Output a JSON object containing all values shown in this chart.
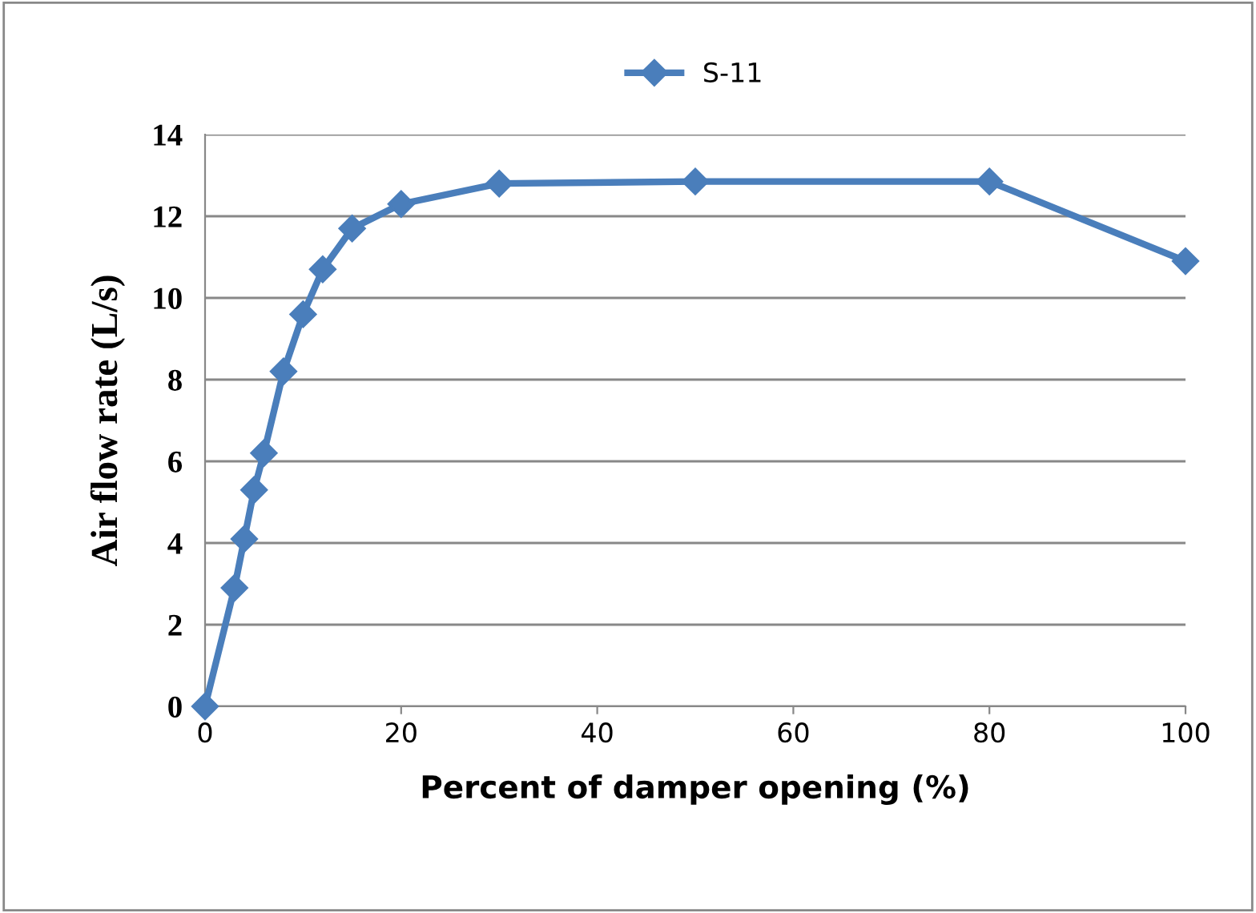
{
  "chart_data": {
    "type": "line",
    "xlabel": "Percent of damper opening (%)",
    "ylabel": "Air flow rate (L/s)",
    "x": [
      0,
      3,
      4,
      5,
      6,
      8,
      10,
      12,
      15,
      20,
      30,
      50,
      80,
      100
    ],
    "series": [
      {
        "name": "S-11",
        "color": "#4a7ebb",
        "values": [
          0,
          2.9,
          4.1,
          5.3,
          6.2,
          8.2,
          9.6,
          10.7,
          11.7,
          12.3,
          12.8,
          12.85,
          12.85,
          10.9
        ]
      }
    ],
    "xlim": [
      0,
      100
    ],
    "xticks": [
      0,
      20,
      40,
      60,
      80,
      100
    ],
    "ylim": [
      0,
      14
    ],
    "yticks": [
      0,
      2,
      4,
      6,
      8,
      10,
      12,
      14
    ],
    "grid": "y",
    "legend": "top",
    "marker": "diamond",
    "line_style": "solid"
  }
}
